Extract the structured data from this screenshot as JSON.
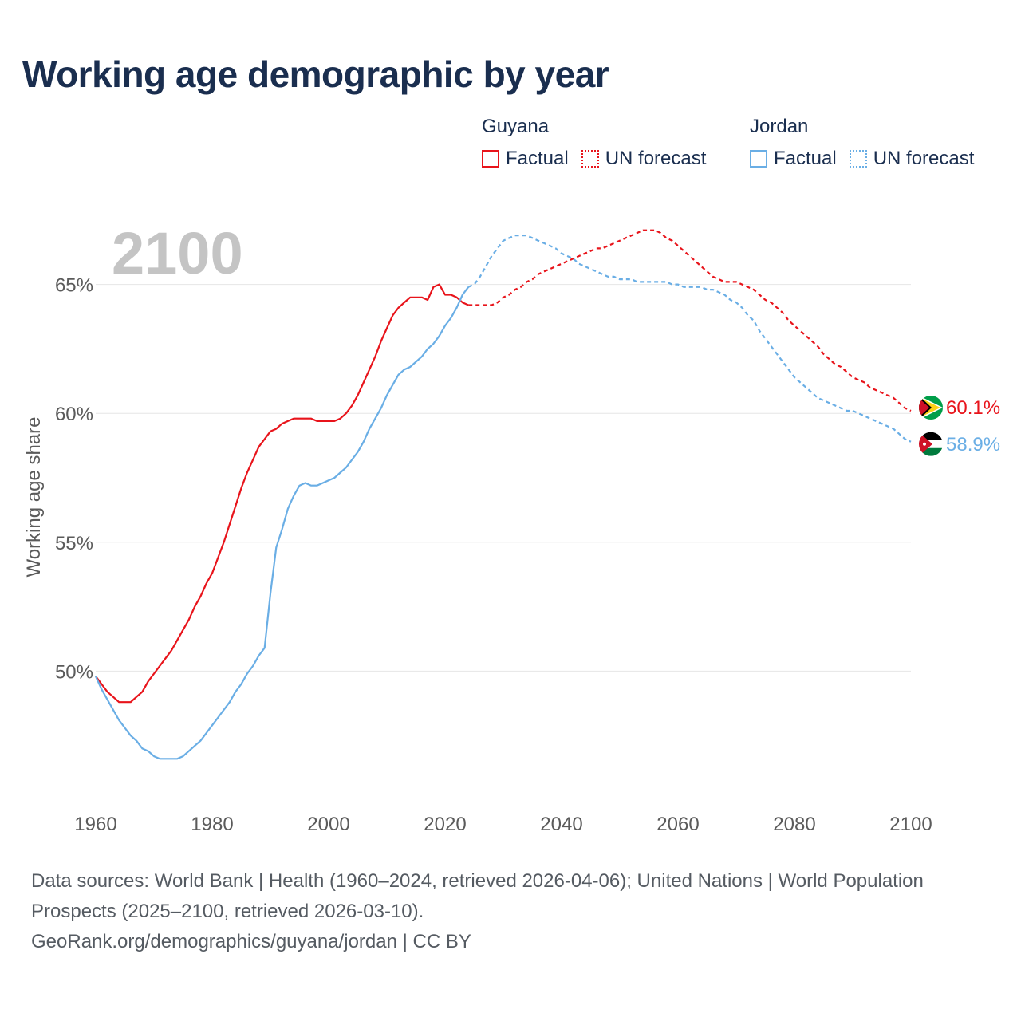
{
  "title": "Working age demographic by year",
  "legend": {
    "groups": [
      {
        "country": "Guyana",
        "factual_label": "Factual",
        "forecast_label": "UN forecast",
        "color": "#e8141b"
      },
      {
        "country": "Jordan",
        "factual_label": "Factual",
        "forecast_label": "UN forecast",
        "color": "#6aaee5"
      }
    ]
  },
  "footer": {
    "sources": "Data sources: World Bank | Health (1960–2024, retrieved 2026-04-06); United Nations | World Population Prospects (2025–2100, retrieved 2026-03-10).",
    "link": "GeoRank.org/demographics/guyana/jordan | CC BY"
  },
  "chart_data": {
    "type": "line",
    "year_label": "2100",
    "ylabel": "Working age share",
    "xlim": [
      1960,
      2100
    ],
    "ylim": [
      45,
      70
    ],
    "xticks": [
      1960,
      1980,
      2000,
      2020,
      2040,
      2060,
      2080,
      2100
    ],
    "yticks": [
      50,
      55,
      60,
      65
    ],
    "ytick_labels": [
      "50%",
      "55%",
      "60%",
      "65%"
    ],
    "grid": true,
    "factual_end_year": 2024,
    "series": [
      {
        "name": "Guyana",
        "color": "#e8141b",
        "end_label": "60.1%",
        "flag": "guyana-flag",
        "points": [
          [
            1960,
            49.8
          ],
          [
            1961,
            49.5
          ],
          [
            1962,
            49.2
          ],
          [
            1963,
            49.0
          ],
          [
            1964,
            48.8
          ],
          [
            1965,
            48.8
          ],
          [
            1966,
            48.8
          ],
          [
            1967,
            49.0
          ],
          [
            1968,
            49.2
          ],
          [
            1969,
            49.6
          ],
          [
            1970,
            49.9
          ],
          [
            1971,
            50.2
          ],
          [
            1972,
            50.5
          ],
          [
            1973,
            50.8
          ],
          [
            1974,
            51.2
          ],
          [
            1975,
            51.6
          ],
          [
            1976,
            52.0
          ],
          [
            1977,
            52.5
          ],
          [
            1978,
            52.9
          ],
          [
            1979,
            53.4
          ],
          [
            1980,
            53.8
          ],
          [
            1981,
            54.4
          ],
          [
            1982,
            55.0
          ],
          [
            1983,
            55.7
          ],
          [
            1984,
            56.4
          ],
          [
            1985,
            57.1
          ],
          [
            1986,
            57.7
          ],
          [
            1987,
            58.2
          ],
          [
            1988,
            58.7
          ],
          [
            1989,
            59.0
          ],
          [
            1990,
            59.3
          ],
          [
            1991,
            59.4
          ],
          [
            1992,
            59.6
          ],
          [
            1993,
            59.7
          ],
          [
            1994,
            59.8
          ],
          [
            1995,
            59.8
          ],
          [
            1996,
            59.8
          ],
          [
            1997,
            59.8
          ],
          [
            1998,
            59.7
          ],
          [
            1999,
            59.7
          ],
          [
            2000,
            59.7
          ],
          [
            2001,
            59.7
          ],
          [
            2002,
            59.8
          ],
          [
            2003,
            60.0
          ],
          [
            2004,
            60.3
          ],
          [
            2005,
            60.7
          ],
          [
            2006,
            61.2
          ],
          [
            2007,
            61.7
          ],
          [
            2008,
            62.2
          ],
          [
            2009,
            62.8
          ],
          [
            2010,
            63.3
          ],
          [
            2011,
            63.8
          ],
          [
            2012,
            64.1
          ],
          [
            2013,
            64.3
          ],
          [
            2014,
            64.5
          ],
          [
            2015,
            64.5
          ],
          [
            2016,
            64.5
          ],
          [
            2017,
            64.4
          ],
          [
            2018,
            64.9
          ],
          [
            2019,
            65.0
          ],
          [
            2020,
            64.6
          ],
          [
            2021,
            64.6
          ],
          [
            2022,
            64.5
          ],
          [
            2023,
            64.3
          ],
          [
            2024,
            64.2
          ],
          [
            2025,
            64.2
          ],
          [
            2026,
            64.2
          ],
          [
            2027,
            64.2
          ],
          [
            2028,
            64.2
          ],
          [
            2029,
            64.3
          ],
          [
            2030,
            64.5
          ],
          [
            2031,
            64.6
          ],
          [
            2032,
            64.8
          ],
          [
            2033,
            64.9
          ],
          [
            2034,
            65.1
          ],
          [
            2035,
            65.2
          ],
          [
            2036,
            65.4
          ],
          [
            2037,
            65.5
          ],
          [
            2038,
            65.6
          ],
          [
            2039,
            65.7
          ],
          [
            2040,
            65.8
          ],
          [
            2041,
            65.9
          ],
          [
            2042,
            66.0
          ],
          [
            2043,
            66.1
          ],
          [
            2044,
            66.2
          ],
          [
            2045,
            66.3
          ],
          [
            2046,
            66.4
          ],
          [
            2047,
            66.4
          ],
          [
            2048,
            66.5
          ],
          [
            2049,
            66.6
          ],
          [
            2050,
            66.7
          ],
          [
            2051,
            66.8
          ],
          [
            2052,
            66.9
          ],
          [
            2053,
            67.0
          ],
          [
            2054,
            67.1
          ],
          [
            2055,
            67.1
          ],
          [
            2056,
            67.1
          ],
          [
            2057,
            67.0
          ],
          [
            2058,
            66.8
          ],
          [
            2059,
            66.7
          ],
          [
            2060,
            66.5
          ],
          [
            2061,
            66.3
          ],
          [
            2062,
            66.1
          ],
          [
            2063,
            65.9
          ],
          [
            2064,
            65.7
          ],
          [
            2065,
            65.5
          ],
          [
            2066,
            65.3
          ],
          [
            2067,
            65.2
          ],
          [
            2068,
            65.1
          ],
          [
            2069,
            65.1
          ],
          [
            2070,
            65.1
          ],
          [
            2071,
            65.0
          ],
          [
            2072,
            64.9
          ],
          [
            2073,
            64.8
          ],
          [
            2074,
            64.6
          ],
          [
            2075,
            64.4
          ],
          [
            2076,
            64.3
          ],
          [
            2077,
            64.1
          ],
          [
            2078,
            63.9
          ],
          [
            2079,
            63.6
          ],
          [
            2080,
            63.4
          ],
          [
            2081,
            63.2
          ],
          [
            2082,
            63.0
          ],
          [
            2083,
            62.8
          ],
          [
            2084,
            62.6
          ],
          [
            2085,
            62.3
          ],
          [
            2086,
            62.1
          ],
          [
            2087,
            61.9
          ],
          [
            2088,
            61.8
          ],
          [
            2089,
            61.6
          ],
          [
            2090,
            61.4
          ],
          [
            2091,
            61.3
          ],
          [
            2092,
            61.2
          ],
          [
            2093,
            61.0
          ],
          [
            2094,
            60.9
          ],
          [
            2095,
            60.8
          ],
          [
            2096,
            60.7
          ],
          [
            2097,
            60.6
          ],
          [
            2098,
            60.4
          ],
          [
            2099,
            60.2
          ],
          [
            2100,
            60.1
          ]
        ]
      },
      {
        "name": "Jordan",
        "color": "#6aaee5",
        "end_label": "58.9%",
        "flag": "jordan-flag",
        "points": [
          [
            1960,
            49.8
          ],
          [
            1961,
            49.3
          ],
          [
            1962,
            48.9
          ],
          [
            1963,
            48.5
          ],
          [
            1964,
            48.1
          ],
          [
            1965,
            47.8
          ],
          [
            1966,
            47.5
          ],
          [
            1967,
            47.3
          ],
          [
            1968,
            47.0
          ],
          [
            1969,
            46.9
          ],
          [
            1970,
            46.7
          ],
          [
            1971,
            46.6
          ],
          [
            1972,
            46.6
          ],
          [
            1973,
            46.6
          ],
          [
            1974,
            46.6
          ],
          [
            1975,
            46.7
          ],
          [
            1976,
            46.9
          ],
          [
            1977,
            47.1
          ],
          [
            1978,
            47.3
          ],
          [
            1979,
            47.6
          ],
          [
            1980,
            47.9
          ],
          [
            1981,
            48.2
          ],
          [
            1982,
            48.5
          ],
          [
            1983,
            48.8
          ],
          [
            1984,
            49.2
          ],
          [
            1985,
            49.5
          ],
          [
            1986,
            49.9
          ],
          [
            1987,
            50.2
          ],
          [
            1988,
            50.6
          ],
          [
            1989,
            50.9
          ],
          [
            1990,
            53.0
          ],
          [
            1991,
            54.8
          ],
          [
            1992,
            55.5
          ],
          [
            1993,
            56.3
          ],
          [
            1994,
            56.8
          ],
          [
            1995,
            57.2
          ],
          [
            1996,
            57.3
          ],
          [
            1997,
            57.2
          ],
          [
            1998,
            57.2
          ],
          [
            1999,
            57.3
          ],
          [
            2000,
            57.4
          ],
          [
            2001,
            57.5
          ],
          [
            2002,
            57.7
          ],
          [
            2003,
            57.9
          ],
          [
            2004,
            58.2
          ],
          [
            2005,
            58.5
          ],
          [
            2006,
            58.9
          ],
          [
            2007,
            59.4
          ],
          [
            2008,
            59.8
          ],
          [
            2009,
            60.2
          ],
          [
            2010,
            60.7
          ],
          [
            2011,
            61.1
          ],
          [
            2012,
            61.5
          ],
          [
            2013,
            61.7
          ],
          [
            2014,
            61.8
          ],
          [
            2015,
            62.0
          ],
          [
            2016,
            62.2
          ],
          [
            2017,
            62.5
          ],
          [
            2018,
            62.7
          ],
          [
            2019,
            63.0
          ],
          [
            2020,
            63.4
          ],
          [
            2021,
            63.7
          ],
          [
            2022,
            64.1
          ],
          [
            2023,
            64.6
          ],
          [
            2024,
            64.9
          ],
          [
            2025,
            65.0
          ],
          [
            2026,
            65.3
          ],
          [
            2027,
            65.7
          ],
          [
            2028,
            66.1
          ],
          [
            2029,
            66.4
          ],
          [
            2030,
            66.7
          ],
          [
            2031,
            66.8
          ],
          [
            2032,
            66.9
          ],
          [
            2033,
            66.9
          ],
          [
            2034,
            66.9
          ],
          [
            2035,
            66.8
          ],
          [
            2036,
            66.7
          ],
          [
            2037,
            66.6
          ],
          [
            2038,
            66.5
          ],
          [
            2039,
            66.4
          ],
          [
            2040,
            66.2
          ],
          [
            2041,
            66.1
          ],
          [
            2042,
            66.0
          ],
          [
            2043,
            65.8
          ],
          [
            2044,
            65.7
          ],
          [
            2045,
            65.6
          ],
          [
            2046,
            65.5
          ],
          [
            2047,
            65.4
          ],
          [
            2048,
            65.3
          ],
          [
            2049,
            65.3
          ],
          [
            2050,
            65.2
          ],
          [
            2051,
            65.2
          ],
          [
            2052,
            65.2
          ],
          [
            2053,
            65.1
          ],
          [
            2054,
            65.1
          ],
          [
            2055,
            65.1
          ],
          [
            2056,
            65.1
          ],
          [
            2057,
            65.1
          ],
          [
            2058,
            65.1
          ],
          [
            2059,
            65.0
          ],
          [
            2060,
            65.0
          ],
          [
            2061,
            64.9
          ],
          [
            2062,
            64.9
          ],
          [
            2063,
            64.9
          ],
          [
            2064,
            64.9
          ],
          [
            2065,
            64.8
          ],
          [
            2066,
            64.8
          ],
          [
            2067,
            64.7
          ],
          [
            2068,
            64.6
          ],
          [
            2069,
            64.4
          ],
          [
            2070,
            64.3
          ],
          [
            2071,
            64.1
          ],
          [
            2072,
            63.8
          ],
          [
            2073,
            63.6
          ],
          [
            2074,
            63.2
          ],
          [
            2075,
            62.9
          ],
          [
            2076,
            62.6
          ],
          [
            2077,
            62.3
          ],
          [
            2078,
            62.0
          ],
          [
            2079,
            61.7
          ],
          [
            2080,
            61.4
          ],
          [
            2081,
            61.2
          ],
          [
            2082,
            61.0
          ],
          [
            2083,
            60.8
          ],
          [
            2084,
            60.6
          ],
          [
            2085,
            60.5
          ],
          [
            2086,
            60.4
          ],
          [
            2087,
            60.3
          ],
          [
            2088,
            60.2
          ],
          [
            2089,
            60.1
          ],
          [
            2090,
            60.1
          ],
          [
            2091,
            60.0
          ],
          [
            2092,
            59.9
          ],
          [
            2093,
            59.8
          ],
          [
            2094,
            59.7
          ],
          [
            2095,
            59.6
          ],
          [
            2096,
            59.5
          ],
          [
            2097,
            59.4
          ],
          [
            2098,
            59.2
          ],
          [
            2099,
            59.0
          ],
          [
            2100,
            58.9
          ]
        ]
      }
    ]
  }
}
